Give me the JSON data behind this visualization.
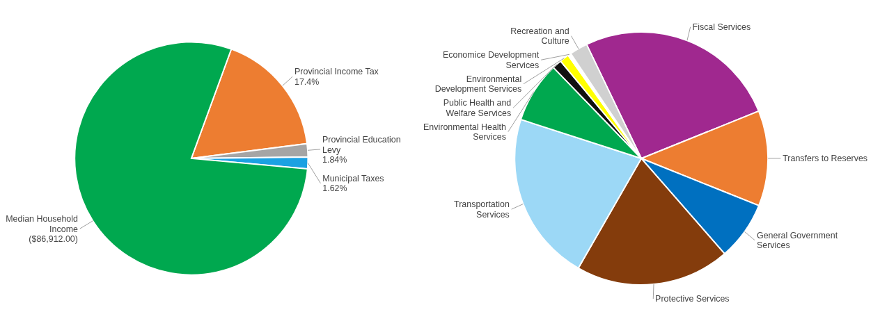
{
  "chart_data": [
    {
      "type": "pie",
      "categories": [
        "Provincial Income Tax",
        "Provincial Education Levy",
        "Municipal Taxes",
        "Median Household Income"
      ],
      "values": [
        17.4,
        1.84,
        1.62,
        79.14
      ],
      "colors": [
        "#ed7d31",
        "#a5a5a5",
        "#1ba1e2",
        "#00a84f"
      ],
      "value_labels": [
        "17.4%",
        "1.84%",
        "1.62%",
        null
      ],
      "annotations": [
        "($86,912.00)"
      ]
    },
    {
      "type": "pie",
      "categories": [
        "Fiscal Services",
        "Transfers to Reserves",
        "General Government Services",
        "Protective Services",
        "Transportation Services",
        "Environmental Health Services",
        "Public Health and Welfare Services",
        "Environmental Development Services",
        "Economice Development Services",
        "Recreation  and Culture"
      ],
      "values": [
        26,
        12.2,
        7.5,
        19.7,
        21.7,
        7.8,
        1.2,
        1.2,
        0.4,
        2.3
      ],
      "colors": [
        "#a0288f",
        "#ed7d31",
        "#0070c0",
        "#843c0c",
        "#9cd8f6",
        "#00a84f",
        "#111111",
        "#ffff00",
        "#ffffff",
        "#d0d0d0"
      ]
    }
  ]
}
